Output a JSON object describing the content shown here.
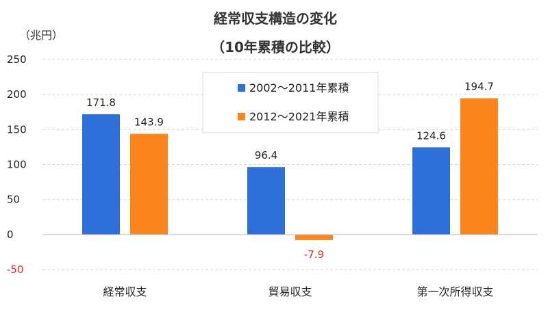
{
  "chart_data": {
    "type": "bar",
    "title": [
      "経常収支構造の変化",
      "（10年累積の比較）"
    ],
    "ylabel": "（兆円）",
    "xlabel": "",
    "categories": [
      "経常収支",
      "貿易収支",
      "第一次所得収支"
    ],
    "series": [
      {
        "name": "2002～2011年累積",
        "color": "#2f6fd9",
        "values": [
          171.8,
          96.4,
          124.6
        ]
      },
      {
        "name": "2012～2021年累積",
        "color": "#fb861f",
        "values": [
          143.9,
          -7.9,
          194.7
        ]
      }
    ],
    "ylim": [
      -50,
      250
    ],
    "yticks": [
      -50,
      0,
      50,
      100,
      150,
      200,
      250
    ],
    "grid": true,
    "legend": "top-center",
    "negative_label_color": "#e8261c"
  }
}
